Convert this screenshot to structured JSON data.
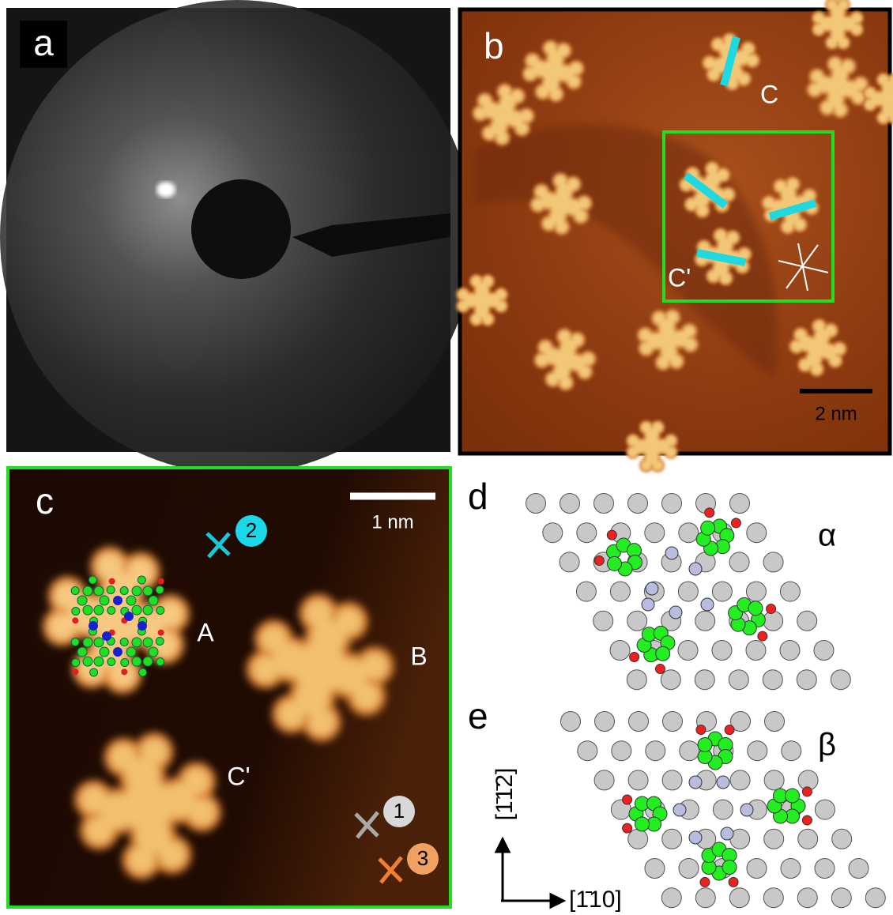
{
  "panels": [
    {
      "label": "a"
    },
    {
      "label": "b",
      "annotations": [
        "C",
        "C'"
      ],
      "scale_bar": "2 nm"
    },
    {
      "label": "c",
      "annotations": [
        "A",
        "B",
        "C'"
      ],
      "scale_bar": "1 nm",
      "markers": [
        "2",
        "1",
        "3"
      ]
    },
    {
      "label": "d",
      "phase": "α"
    },
    {
      "label": "e",
      "phase": "β",
      "axes": [
        "[1̄1̄2]",
        "[1̄10]"
      ]
    }
  ]
}
